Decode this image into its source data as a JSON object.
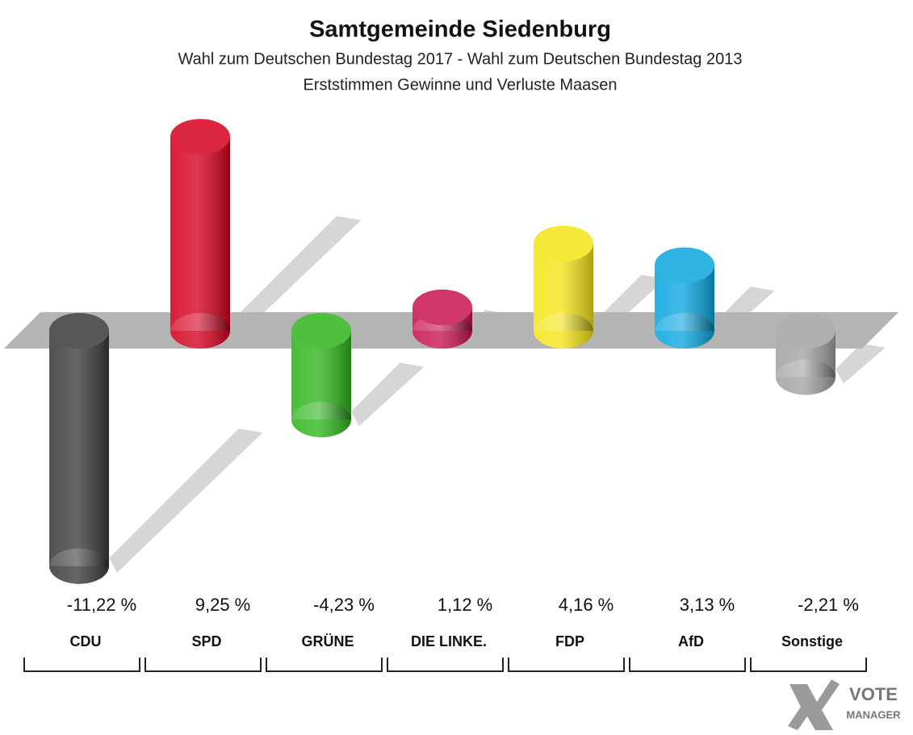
{
  "chart_data": {
    "type": "bar",
    "title": "Samtgemeinde Siedenburg",
    "subtitle": [
      "Wahl zum Deutschen Bundestag 2017 - Wahl zum Deutschen Bundestag 2013",
      "Erststimmen Gewinne und Verluste Maasen"
    ],
    "categories": [
      "CDU",
      "SPD",
      "GRÜNE",
      "DIE LINKE.",
      "FDP",
      "AfD",
      "Sonstige"
    ],
    "values": [
      -11.22,
      9.25,
      -4.23,
      1.12,
      4.16,
      3.13,
      -2.21
    ],
    "value_labels": [
      "-11,22 %",
      "9,25 %",
      "-4,23 %",
      "1,12 %",
      "4,16 %",
      "3,13 %",
      "-2,21 %"
    ],
    "colors": [
      "#3a3a3a",
      "#d4001e",
      "#2fb51c",
      "#c8144e",
      "#f4e417",
      "#0aa6df",
      "#a2a2a2"
    ],
    "logo": [
      "VOTE",
      "MANAGER"
    ]
  }
}
